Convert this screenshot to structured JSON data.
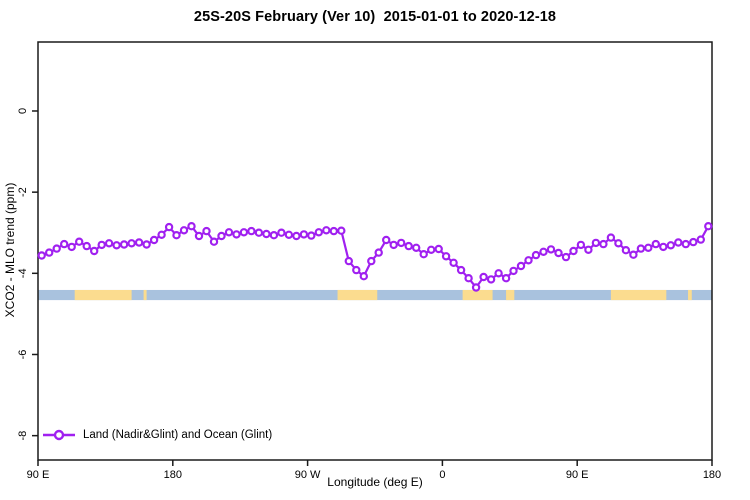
{
  "chart_data": {
    "type": "line",
    "title": "25S-20S February (Ver 10)  2015-01-01 to 2020-12-18",
    "xlabel": "Longitude (deg E)",
    "ylabel": "XCO2 - MLO trend (ppm)",
    "xlim": [
      90,
      540
    ],
    "ylim": [
      -8.6,
      1.7
    ],
    "grid": false,
    "legend_position": "bottom-left",
    "x_ticks": [
      {
        "value": 90,
        "label": "90 E"
      },
      {
        "value": 180,
        "label": "180"
      },
      {
        "value": 270,
        "label": "90 W"
      },
      {
        "value": 360,
        "label": "0"
      },
      {
        "value": 450,
        "label": "90 E"
      },
      {
        "value": 540,
        "label": "180"
      }
    ],
    "y_ticks": [
      {
        "value": 0,
        "label": "0"
      },
      {
        "value": -2,
        "label": "-2"
      },
      {
        "value": -4,
        "label": "-4"
      },
      {
        "value": -6,
        "label": "-6"
      },
      {
        "value": -8,
        "label": "-8"
      }
    ],
    "series": [
      {
        "name": "Land (Nadir&Glint) and Ocean (Glint)",
        "color": "#A020F0",
        "marker": "open-circle",
        "x": [
          92.5,
          97.5,
          102.5,
          107.5,
          112.5,
          117.5,
          122.5,
          127.5,
          132.5,
          137.5,
          142.5,
          147.5,
          152.5,
          157.5,
          162.5,
          167.5,
          172.5,
          177.5,
          182.5,
          187.5,
          192.5,
          197.5,
          202.5,
          207.5,
          212.5,
          217.5,
          222.5,
          227.5,
          232.5,
          237.5,
          242.5,
          247.5,
          252.5,
          257.5,
          262.5,
          267.5,
          272.5,
          277.5,
          282.5,
          287.5,
          292.5,
          297.5,
          302.5,
          307.5,
          312.5,
          317.5,
          322.5,
          327.5,
          332.5,
          337.5,
          342.5,
          347.5,
          352.5,
          357.5,
          362.5,
          367.5,
          372.5,
          377.5,
          382.5,
          387.5,
          392.5,
          397.5,
          402.5,
          407.5,
          412.5,
          417.5,
          422.5,
          427.5,
          432.5,
          437.5,
          442.5,
          447.5,
          452.5,
          457.5,
          462.5,
          467.5,
          472.5,
          477.5,
          482.5,
          487.5,
          492.5,
          497.5,
          502.5,
          507.5,
          512.5,
          517.5,
          522.5,
          527.5,
          532.5,
          537.5
        ],
        "y": [
          -3.56,
          -3.49,
          -3.39,
          -3.28,
          -3.35,
          -3.22,
          -3.33,
          -3.45,
          -3.3,
          -3.26,
          -3.31,
          -3.29,
          -3.26,
          -3.24,
          -3.29,
          -3.18,
          -3.05,
          -2.86,
          -3.06,
          -2.94,
          -2.84,
          -3.08,
          -2.96,
          -3.22,
          -3.08,
          -2.99,
          -3.04,
          -2.99,
          -2.96,
          -3.0,
          -3.03,
          -3.06,
          -3.0,
          -3.05,
          -3.08,
          -3.04,
          -3.07,
          -2.99,
          -2.94,
          -2.96,
          -2.95,
          -3.7,
          -3.92,
          -4.07,
          -3.7,
          -3.49,
          -3.18,
          -3.3,
          -3.25,
          -3.33,
          -3.37,
          -3.53,
          -3.42,
          -3.4,
          -3.58,
          -3.74,
          -3.92,
          -4.12,
          -4.35,
          -4.09,
          -4.15,
          -4.0,
          -4.12,
          -3.94,
          -3.82,
          -3.68,
          -3.55,
          -3.47,
          -3.41,
          -3.5,
          -3.6,
          -3.45,
          -3.3,
          -3.42,
          -3.25,
          -3.28,
          -3.12,
          -3.26,
          -3.43,
          -3.54,
          -3.39,
          -3.37,
          -3.28,
          -3.35,
          -3.31,
          -3.24,
          -3.28,
          -3.23,
          -3.17,
          -2.84
        ]
      }
    ],
    "surface_band": {
      "meaning": "land-ocean strip along latitude band",
      "y_top": -4.41,
      "y_bottom": -4.66,
      "ocean_color": "#A9C2DE",
      "land_color": "#FBDC8F",
      "land_segments_lon": [
        [
          114.5,
          152.5
        ],
        [
          160.5,
          162.5
        ],
        [
          290,
          316.5
        ],
        [
          373.5,
          393.5
        ],
        [
          402.5,
          408
        ],
        [
          472.5,
          509.5
        ],
        [
          524,
          526.5
        ]
      ]
    }
  },
  "legend": {
    "marker_icon": "open-circle-line",
    "label": "Land (Nadir&Glint) and Ocean (Glint)"
  }
}
